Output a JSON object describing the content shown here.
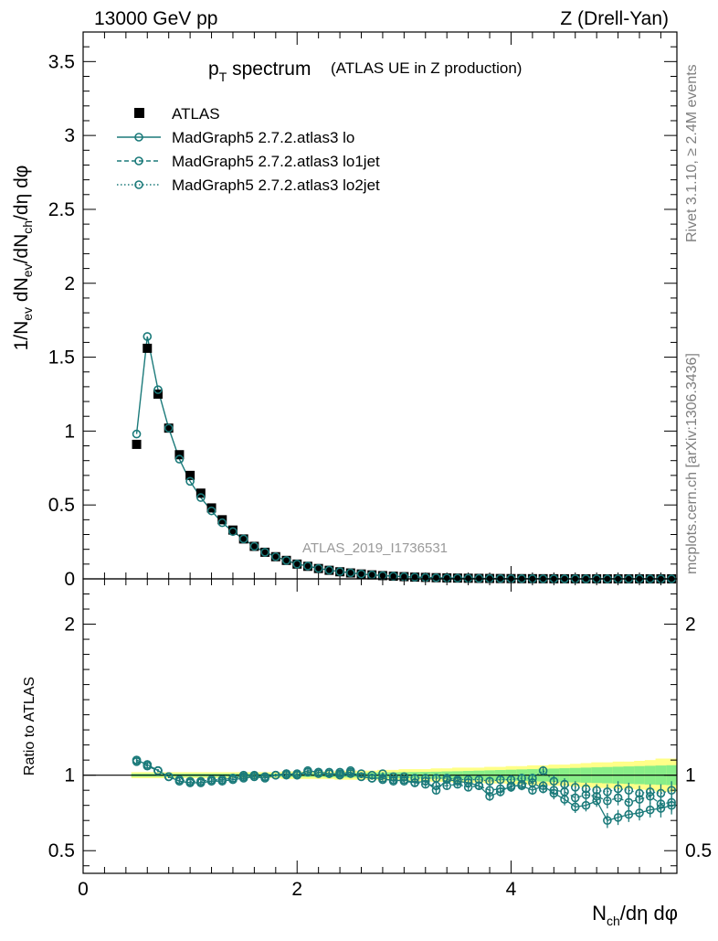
{
  "header": {
    "left": "13000 GeV pp",
    "right": "Z (Drell-Yan)"
  },
  "side_labels": {
    "rivet": "Rivet 3.1.10, ≥ 2.4M events",
    "mcplots": "mcplots.cern.ch [arXiv:1306.3436]"
  },
  "chart_data": [
    {
      "type": "scatter",
      "title": "p_T spectrum (ATLAS UE in Z production)",
      "title_main": "p",
      "title_sub": "T",
      "title_rest": " spectrum",
      "title_paren": "(ATLAS UE in Z production)",
      "watermark": "ATLAS_2019_I1736531",
      "ylabel": "1/N_ev dN_ev/dN_ch/dη dφ",
      "ylim": [
        0,
        3.7
      ],
      "xlim": [
        0,
        5.55
      ],
      "yticks": [
        "0",
        "0.5",
        "1",
        "1.5",
        "2",
        "2.5",
        "3",
        "3.5"
      ],
      "legend_position": "top-left",
      "legend": [
        {
          "name": "ATLAS",
          "style": "data"
        },
        {
          "name": "MadGraph5 2.7.2.atlas3 lo",
          "style": "solid"
        },
        {
          "name": "MadGraph5 2.7.2.atlas3 lo1jet",
          "style": "dashed"
        },
        {
          "name": "MadGraph5 2.7.2.atlas3 lo2jet",
          "style": "dotted"
        }
      ],
      "x": [
        0.5,
        0.6,
        0.7,
        0.8,
        0.9,
        1.0,
        1.1,
        1.2,
        1.3,
        1.4,
        1.5,
        1.6,
        1.7,
        1.8,
        1.9,
        2.0,
        2.1,
        2.2,
        2.3,
        2.4,
        2.5,
        2.6,
        2.7,
        2.8,
        2.9,
        3.0,
        3.1,
        3.2,
        3.3,
        3.4,
        3.5,
        3.6,
        3.7,
        3.8,
        3.9,
        4.0,
        4.1,
        4.2,
        4.3,
        4.4,
        4.5,
        4.6,
        4.7,
        4.8,
        4.9,
        5.0,
        5.1,
        5.2,
        5.3,
        5.4,
        5.5
      ],
      "series": [
        {
          "name": "ATLAS",
          "color": "#000000",
          "values": [
            0.91,
            1.56,
            1.25,
            1.02,
            0.84,
            0.7,
            0.58,
            0.48,
            0.4,
            0.33,
            0.27,
            0.22,
            0.18,
            0.15,
            0.125,
            0.1,
            0.085,
            0.07,
            0.058,
            0.048,
            0.04,
            0.033,
            0.027,
            0.022,
            0.018,
            0.015,
            0.012,
            0.01,
            0.008,
            0.0065,
            0.0053,
            0.0043,
            0.0035,
            0.0028,
            0.0023,
            0.0018,
            0.0015,
            0.0012,
            0.001,
            0.0008,
            0.00065,
            0.00052,
            0.00042,
            0.00034,
            0.00027,
            0.00022,
            0.00018,
            0.00014,
            0.00011,
            9e-05,
            7e-05
          ]
        },
        {
          "name": "MadGraph5 2.7.2.atlas3 lo",
          "color": "#1b7a7a",
          "values": [
            0.98,
            1.64,
            1.28,
            1.02,
            0.81,
            0.66,
            0.55,
            0.46,
            0.38,
            0.32,
            0.27,
            0.22,
            0.18,
            0.15,
            0.125,
            0.1,
            0.087,
            0.071,
            0.059,
            0.049,
            0.041,
            0.033,
            0.027,
            0.022,
            0.018,
            0.015,
            0.012,
            0.0095,
            0.0075,
            0.006,
            0.005,
            0.004,
            0.0032,
            0.0025,
            0.002,
            0.0016,
            0.0013,
            0.001,
            0.0008,
            0.00064,
            0.0005,
            0.0004,
            0.00032,
            0.00025,
            0.0002,
            0.00016,
            0.00013,
            0.0001,
            8e-05,
            6e-05,
            5e-05
          ]
        }
      ]
    },
    {
      "type": "scatter",
      "ylabel": "Ratio to ATLAS",
      "xlabel": "N_ch/dη dφ",
      "ylim": [
        0.35,
        2.3
      ],
      "xlim": [
        0,
        5.55
      ],
      "yticks": [
        "0.5",
        "1",
        "2"
      ],
      "xticks": [
        "0",
        "2",
        "4"
      ],
      "band_color_yellow": "#ffff88",
      "band_color_green": "#88ee88",
      "x": [
        0.5,
        0.6,
        0.7,
        0.8,
        0.9,
        1.0,
        1.1,
        1.2,
        1.3,
        1.4,
        1.5,
        1.6,
        1.7,
        1.8,
        1.9,
        2.0,
        2.1,
        2.2,
        2.3,
        2.4,
        2.5,
        2.6,
        2.7,
        2.8,
        2.9,
        3.0,
        3.1,
        3.2,
        3.3,
        3.4,
        3.5,
        3.6,
        3.7,
        3.8,
        3.9,
        4.0,
        4.1,
        4.2,
        4.3,
        4.4,
        4.5,
        4.6,
        4.7,
        4.8,
        4.9,
        5.0,
        5.1,
        5.2,
        5.3,
        5.4,
        5.5
      ],
      "band_yellow_halfwidth": [
        0.02,
        0.02,
        0.02,
        0.02,
        0.02,
        0.02,
        0.02,
        0.02,
        0.02,
        0.02,
        0.02,
        0.02,
        0.02,
        0.02,
        0.025,
        0.025,
        0.025,
        0.025,
        0.025,
        0.03,
        0.03,
        0.03,
        0.03,
        0.035,
        0.035,
        0.04,
        0.04,
        0.04,
        0.045,
        0.045,
        0.05,
        0.05,
        0.05,
        0.055,
        0.055,
        0.06,
        0.06,
        0.065,
        0.065,
        0.07,
        0.07,
        0.075,
        0.08,
        0.085,
        0.085,
        0.09,
        0.09,
        0.095,
        0.1,
        0.11,
        0.11
      ],
      "band_green_halfwidth": [
        0.01,
        0.01,
        0.01,
        0.01,
        0.01,
        0.01,
        0.01,
        0.01,
        0.01,
        0.01,
        0.01,
        0.01,
        0.01,
        0.01,
        0.012,
        0.012,
        0.012,
        0.012,
        0.014,
        0.015,
        0.015,
        0.016,
        0.017,
        0.018,
        0.019,
        0.02,
        0.021,
        0.022,
        0.023,
        0.025,
        0.026,
        0.028,
        0.03,
        0.032,
        0.034,
        0.036,
        0.038,
        0.04,
        0.042,
        0.044,
        0.046,
        0.048,
        0.05,
        0.052,
        0.054,
        0.056,
        0.058,
        0.06,
        0.062,
        0.064,
        0.066
      ],
      "series": [
        {
          "name": "MadGraph5 2.7.2.atlas3 lo",
          "style": "solid",
          "color": "#1b7a7a",
          "values": [
            1.1,
            1.07,
            1.03,
            0.99,
            0.96,
            0.95,
            0.95,
            0.96,
            0.96,
            0.97,
            0.98,
            0.99,
            0.98,
            1.0,
            1.01,
            1.0,
            1.03,
            1.02,
            1.01,
            1.01,
            1.02,
            0.99,
            0.98,
            0.98,
            0.96,
            0.97,
            0.95,
            0.96,
            0.9,
            0.97,
            0.96,
            0.95,
            0.93,
            0.86,
            0.89,
            0.93,
            0.93,
            0.9,
            0.93,
            0.88,
            0.84,
            0.79,
            0.8,
            0.83,
            0.7,
            0.72,
            0.74,
            0.75,
            0.77,
            0.78,
            0.8
          ],
          "errors": [
            0.01,
            0.01,
            0.01,
            0.01,
            0.01,
            0.01,
            0.01,
            0.01,
            0.01,
            0.01,
            0.01,
            0.01,
            0.01,
            0.01,
            0.01,
            0.01,
            0.01,
            0.01,
            0.01,
            0.01,
            0.01,
            0.01,
            0.01,
            0.01,
            0.015,
            0.015,
            0.02,
            0.02,
            0.02,
            0.02,
            0.02,
            0.02,
            0.02,
            0.03,
            0.03,
            0.03,
            0.03,
            0.03,
            0.03,
            0.04,
            0.04,
            0.04,
            0.04,
            0.04,
            0.05,
            0.05,
            0.05,
            0.05,
            0.05,
            0.06,
            0.06
          ]
        },
        {
          "name": "MadGraph5 2.7.2.atlas3 lo1jet",
          "style": "dashed",
          "color": "#1b7a7a",
          "values": [
            1.09,
            1.06,
            1.03,
            0.99,
            0.96,
            0.95,
            0.95,
            0.96,
            0.97,
            0.98,
            0.99,
            0.99,
            0.99,
            1.0,
            1.0,
            1.0,
            1.02,
            1.01,
            1.01,
            1.0,
            1.01,
            0.99,
            0.98,
            0.97,
            0.97,
            0.96,
            0.95,
            0.94,
            0.93,
            0.93,
            0.94,
            0.92,
            0.93,
            0.9,
            0.91,
            0.92,
            0.94,
            0.95,
            0.91,
            0.9,
            0.89,
            0.85,
            0.87,
            0.86,
            0.83,
            0.85,
            0.82,
            0.84,
            0.86,
            0.81,
            0.82
          ],
          "errors": [
            0.01,
            0.01,
            0.01,
            0.01,
            0.01,
            0.01,
            0.01,
            0.01,
            0.01,
            0.01,
            0.01,
            0.01,
            0.01,
            0.01,
            0.01,
            0.01,
            0.01,
            0.01,
            0.01,
            0.01,
            0.01,
            0.01,
            0.01,
            0.01,
            0.015,
            0.015,
            0.02,
            0.02,
            0.02,
            0.02,
            0.02,
            0.02,
            0.02,
            0.03,
            0.03,
            0.03,
            0.03,
            0.03,
            0.03,
            0.04,
            0.04,
            0.04,
            0.04,
            0.04,
            0.05,
            0.05,
            0.05,
            0.05,
            0.05,
            0.06,
            0.06
          ]
        },
        {
          "name": "MadGraph5 2.7.2.atlas3 lo2jet",
          "style": "dotted",
          "color": "#1b7a7a",
          "values": [
            1.1,
            1.07,
            1.03,
            0.99,
            0.97,
            0.96,
            0.96,
            0.97,
            0.97,
            0.98,
            1.0,
            1.0,
            0.99,
            1.0,
            1.01,
            1.01,
            1.02,
            1.02,
            1.02,
            1.02,
            1.03,
            1.01,
            1.0,
            1.01,
            0.99,
            0.99,
            0.98,
            0.98,
            0.98,
            0.98,
            0.97,
            0.97,
            0.97,
            0.96,
            0.97,
            0.97,
            0.98,
            0.98,
            1.03,
            0.96,
            0.94,
            0.92,
            0.91,
            0.9,
            0.89,
            0.91,
            0.9,
            0.88,
            0.89,
            0.88,
            0.9
          ],
          "errors": [
            0.01,
            0.01,
            0.01,
            0.01,
            0.01,
            0.01,
            0.01,
            0.01,
            0.01,
            0.01,
            0.01,
            0.01,
            0.01,
            0.01,
            0.01,
            0.01,
            0.01,
            0.01,
            0.01,
            0.01,
            0.01,
            0.01,
            0.01,
            0.01,
            0.015,
            0.015,
            0.02,
            0.02,
            0.02,
            0.02,
            0.02,
            0.02,
            0.02,
            0.03,
            0.03,
            0.03,
            0.03,
            0.03,
            0.03,
            0.04,
            0.04,
            0.04,
            0.04,
            0.04,
            0.05,
            0.05,
            0.05,
            0.05,
            0.05,
            0.06,
            0.06
          ]
        }
      ]
    }
  ]
}
